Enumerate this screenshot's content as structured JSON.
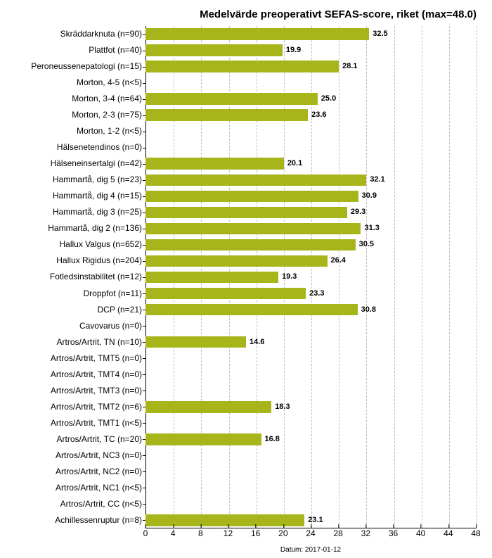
{
  "chart": {
    "type": "bar-horizontal",
    "title": "Medelvärde preoperativt SEFAS-score, riket (max=48.0)",
    "title_fontsize": 15,
    "bar_color": "#a7b41a",
    "background_color": "#ffffff",
    "grid_color": "#c0c0c0",
    "xlim": [
      0,
      48
    ],
    "xtick_step": 4,
    "xticks": [
      0,
      4,
      8,
      12,
      16,
      20,
      24,
      28,
      32,
      36,
      40,
      44,
      48
    ],
    "label_fontsize": 12,
    "value_fontsize": 11,
    "date_caption": "Datum: 2017-01-12",
    "items": [
      {
        "label": "Skräddarknuta (n=90)",
        "value": 32.5
      },
      {
        "label": "Plattfot (n=40)",
        "value": 19.9
      },
      {
        "label": "Peroneussenepatologi (n=15)",
        "value": 28.1
      },
      {
        "label": "Morton, 4-5 (n<5)",
        "value": null
      },
      {
        "label": "Morton, 3-4 (n=64)",
        "value": 25.0
      },
      {
        "label": "Morton, 2-3 (n=75)",
        "value": 23.6
      },
      {
        "label": "Morton, 1-2 (n<5)",
        "value": null
      },
      {
        "label": "Hälsenetendinos (n=0)",
        "value": null
      },
      {
        "label": "Hälseneinsertalgi (n=42)",
        "value": 20.1
      },
      {
        "label": "Hammartå, dig 5 (n=23)",
        "value": 32.1
      },
      {
        "label": "Hammartå, dig 4 (n=15)",
        "value": 30.9
      },
      {
        "label": "Hammartå, dig 3 (n=25)",
        "value": 29.3
      },
      {
        "label": "Hammartå, dig 2 (n=136)",
        "value": 31.3
      },
      {
        "label": "Hallux Valgus (n=652)",
        "value": 30.5
      },
      {
        "label": "Hallux Rigidus (n=204)",
        "value": 26.4
      },
      {
        "label": "Fotledsinstabilitet (n=12)",
        "value": 19.3
      },
      {
        "label": "Droppfot (n=11)",
        "value": 23.3
      },
      {
        "label": "DCP (n=21)",
        "value": 30.8
      },
      {
        "label": "Cavovarus (n=0)",
        "value": null
      },
      {
        "label": "Artros/Artrit, TN (n=10)",
        "value": 14.6
      },
      {
        "label": "Artros/Artrit, TMT5 (n=0)",
        "value": null
      },
      {
        "label": "Artros/Artrit, TMT4 (n=0)",
        "value": null
      },
      {
        "label": "Artros/Artrit, TMT3 (n=0)",
        "value": null
      },
      {
        "label": "Artros/Artrit, TMT2 (n=6)",
        "value": 18.3
      },
      {
        "label": "Artros/Artrit, TMT1 (n<5)",
        "value": null
      },
      {
        "label": "Artros/Artrit, TC (n=20)",
        "value": 16.8
      },
      {
        "label": "Artros/Artrit, NC3 (n=0)",
        "value": null
      },
      {
        "label": "Artros/Artrit, NC2 (n=0)",
        "value": null
      },
      {
        "label": "Artros/Artrit, NC1 (n<5)",
        "value": null
      },
      {
        "label": "Artros/Artrit, CC (n<5)",
        "value": null
      },
      {
        "label": "Achillessenruptur (n=8)",
        "value": 23.1
      }
    ]
  }
}
